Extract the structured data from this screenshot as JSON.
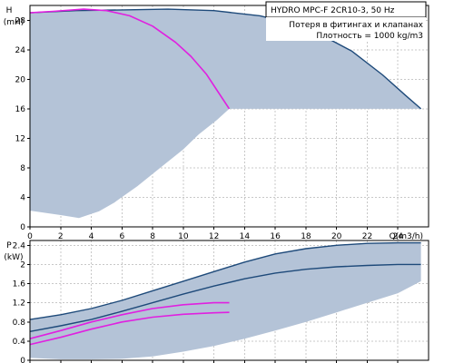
{
  "chart_data": [
    {
      "type": "line",
      "id": "head",
      "legend": {
        "title": "HYDRO MPC-F 2CR10-3, 50 Hz",
        "lines": [
          "Потеря в фитингах и клапанах",
          "Плотность = 1000 kg/m3"
        ]
      },
      "ylabel_top": "H",
      "ylabel_unit": "(mH)",
      "xlabel": "Q(m3/h)",
      "xlim": [
        0,
        26
      ],
      "ylim": [
        0,
        30
      ],
      "xticks": [
        0,
        2,
        4,
        6,
        8,
        10,
        12,
        14,
        16,
        18,
        20,
        22,
        24
      ],
      "yticks": [
        0,
        4,
        8,
        12,
        16,
        20,
        24,
        28
      ],
      "grid": true,
      "colors": {
        "area": "#b4c3d7",
        "dark": "#1e4a7a",
        "magenta": "#e020e0"
      },
      "area": {
        "upper": [
          [
            0,
            29.0
          ],
          [
            3,
            29.3
          ],
          [
            6,
            29.4
          ],
          [
            9,
            29.5
          ],
          [
            12,
            29.3
          ],
          [
            15,
            28.6
          ],
          [
            17,
            27.6
          ],
          [
            19,
            26.0
          ],
          [
            21,
            23.8
          ],
          [
            23,
            20.6
          ],
          [
            24.5,
            17.8
          ],
          [
            25.5,
            16.0
          ]
        ],
        "lower": [
          [
            25.5,
            16.0
          ],
          [
            13.0,
            16.0
          ],
          [
            12.2,
            14.5
          ],
          [
            11.0,
            12.5
          ],
          [
            10.0,
            10.5
          ],
          [
            8.5,
            8.0
          ],
          [
            7.0,
            5.5
          ],
          [
            5.5,
            3.3
          ],
          [
            4.5,
            2.1
          ],
          [
            3.2,
            1.2
          ],
          [
            2.0,
            1.6
          ],
          [
            0,
            2.2
          ]
        ]
      },
      "series": [
        {
          "style": "dark",
          "points": [
            [
              0,
              29.0
            ],
            [
              3,
              29.3
            ],
            [
              6,
              29.4
            ],
            [
              9,
              29.5
            ],
            [
              12,
              29.3
            ],
            [
              15,
              28.6
            ],
            [
              17,
              27.6
            ],
            [
              19,
              26.0
            ],
            [
              21,
              23.8
            ],
            [
              23,
              20.6
            ],
            [
              24.5,
              17.8
            ],
            [
              25.5,
              16.0
            ]
          ]
        },
        {
          "style": "magenta",
          "points": [
            [
              0,
              29.0
            ],
            [
              1.5,
              29.2
            ],
            [
              3.5,
              29.5
            ],
            [
              5,
              29.3
            ],
            [
              6.5,
              28.6
            ],
            [
              8,
              27.2
            ],
            [
              9.5,
              25.0
            ],
            [
              10.5,
              23.1
            ],
            [
              11.5,
              20.7
            ],
            [
              12.2,
              18.5
            ],
            [
              13.0,
              16.0
            ]
          ]
        }
      ]
    },
    {
      "type": "line",
      "id": "power",
      "ylabel_top": "P",
      "ylabel_unit": "(kW)",
      "xlim": [
        0,
        26
      ],
      "ylim": [
        0,
        2.5
      ],
      "xticks": [
        0,
        2,
        4,
        6,
        8,
        10,
        12,
        14,
        16,
        18,
        20,
        22,
        24
      ],
      "yticks": [
        0,
        0.4,
        0.8,
        1.2,
        1.6,
        2,
        2.4
      ],
      "ytick_labels": [
        "0",
        "0.4",
        "0.8",
        "1.2",
        "1.6",
        "2",
        "2.4"
      ],
      "grid": true,
      "colors": {
        "area": "#b4c3d7",
        "dark": "#1e4a7a",
        "magenta": "#e020e0"
      },
      "area": {
        "upper": [
          [
            0,
            0.85
          ],
          [
            2,
            0.95
          ],
          [
            4,
            1.08
          ],
          [
            6,
            1.25
          ],
          [
            8,
            1.45
          ],
          [
            10,
            1.65
          ],
          [
            12,
            1.85
          ],
          [
            14,
            2.05
          ],
          [
            16,
            2.22
          ],
          [
            18,
            2.33
          ],
          [
            20,
            2.4
          ],
          [
            22,
            2.44
          ],
          [
            24,
            2.45
          ],
          [
            25.5,
            2.45
          ]
        ],
        "lower": [
          [
            25.5,
            1.65
          ],
          [
            24,
            1.4
          ],
          [
            22,
            1.2
          ],
          [
            20,
            1.0
          ],
          [
            18,
            0.8
          ],
          [
            16,
            0.62
          ],
          [
            14,
            0.45
          ],
          [
            12,
            0.3
          ],
          [
            10,
            0.18
          ],
          [
            8,
            0.08
          ],
          [
            6,
            0.03
          ],
          [
            4,
            0.02
          ],
          [
            2,
            0.02
          ],
          [
            0,
            0.05
          ]
        ]
      },
      "series": [
        {
          "style": "dark",
          "points": [
            [
              0,
              0.85
            ],
            [
              2,
              0.95
            ],
            [
              4,
              1.08
            ],
            [
              6,
              1.25
            ],
            [
              8,
              1.45
            ],
            [
              10,
              1.65
            ],
            [
              12,
              1.85
            ],
            [
              14,
              2.05
            ],
            [
              16,
              2.22
            ],
            [
              18,
              2.33
            ],
            [
              20,
              2.4
            ],
            [
              22,
              2.44
            ],
            [
              24,
              2.45
            ],
            [
              25.5,
              2.45
            ]
          ]
        },
        {
          "style": "dark",
          "points": [
            [
              0,
              0.6
            ],
            [
              2,
              0.72
            ],
            [
              4,
              0.85
            ],
            [
              6,
              1.02
            ],
            [
              8,
              1.2
            ],
            [
              10,
              1.38
            ],
            [
              12,
              1.55
            ],
            [
              14,
              1.7
            ],
            [
              16,
              1.82
            ],
            [
              18,
              1.9
            ],
            [
              20,
              1.95
            ],
            [
              22,
              1.98
            ],
            [
              24,
              2.0
            ],
            [
              25.5,
              2.0
            ]
          ]
        },
        {
          "style": "magenta",
          "points": [
            [
              0,
              0.45
            ],
            [
              2,
              0.62
            ],
            [
              4,
              0.8
            ],
            [
              6,
              0.95
            ],
            [
              8,
              1.08
            ],
            [
              10,
              1.16
            ],
            [
              12,
              1.2
            ],
            [
              13,
              1.2
            ]
          ]
        },
        {
          "style": "magenta",
          "points": [
            [
              0,
              0.33
            ],
            [
              2,
              0.48
            ],
            [
              4,
              0.65
            ],
            [
              6,
              0.8
            ],
            [
              8,
              0.9
            ],
            [
              10,
              0.96
            ],
            [
              12,
              0.99
            ],
            [
              13,
              1.0
            ]
          ]
        }
      ]
    }
  ]
}
